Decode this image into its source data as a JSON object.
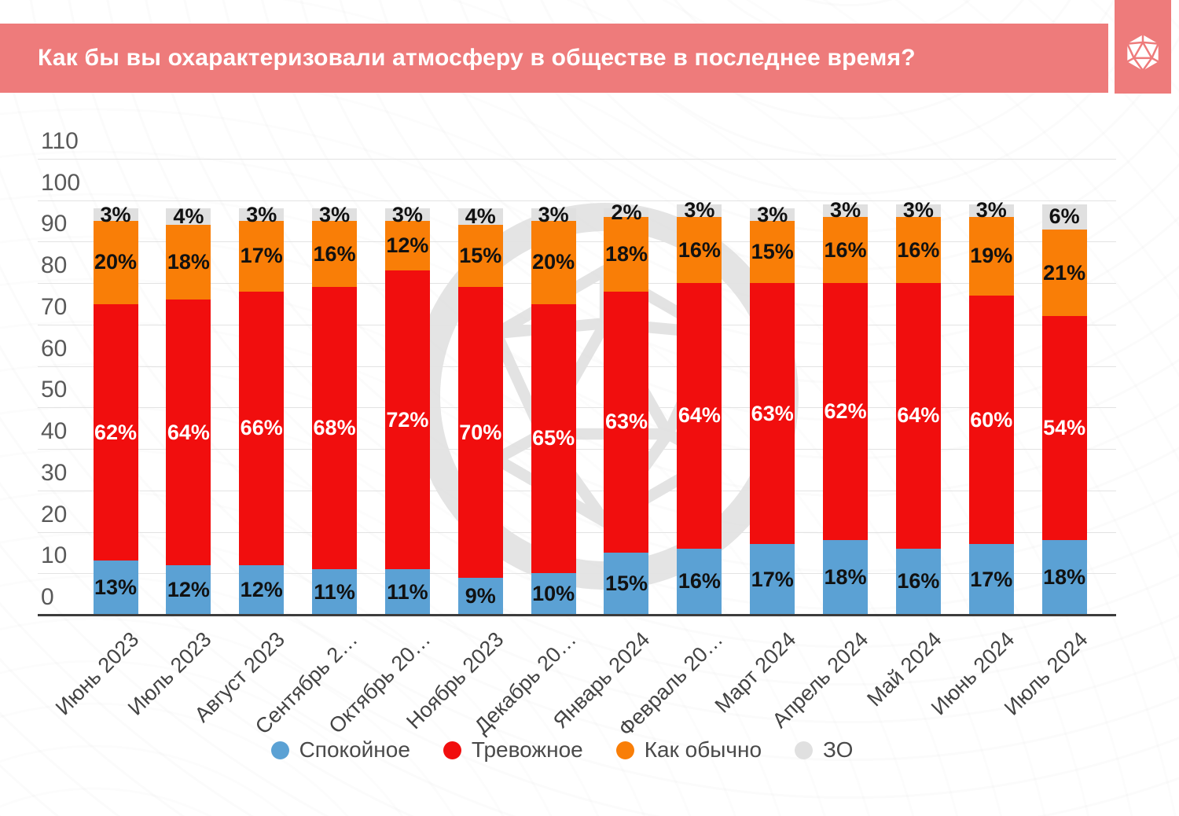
{
  "header": {
    "title": "Как бы вы охарактеризовали атмосферу в обществе в последнее время?",
    "accent_color": "#ee7b7b",
    "logo_icon": "d20-icon"
  },
  "chart_data": {
    "type": "bar",
    "stacked": true,
    "title": "Как бы вы охарактеризовали атмосферу в обществе в последнее время?",
    "categories": [
      "Июнь 2023",
      "Июль 2023",
      "Август 2023",
      "Сентябрь 2…",
      "Октябрь 20…",
      "Ноябрь 2023",
      "Декабрь 20…",
      "Январь 2024",
      "Февраль 20…",
      "Март 2024",
      "Апрель 2024",
      "Май 2024",
      "Июнь 2024",
      "Июль 2024"
    ],
    "series": [
      {
        "name": "Спокойное",
        "color": "#5ba1d4",
        "label_color": "#111111",
        "values": [
          13,
          12,
          12,
          11,
          11,
          9,
          10,
          15,
          16,
          17,
          18,
          16,
          17,
          18
        ]
      },
      {
        "name": "Тревожное",
        "color": "#f10e0e",
        "label_color": "#ffffff",
        "values": [
          62,
          64,
          66,
          68,
          72,
          70,
          65,
          63,
          64,
          63,
          62,
          64,
          60,
          54
        ]
      },
      {
        "name": "Как обычно",
        "color": "#f97e07",
        "label_color": "#111111",
        "values": [
          20,
          18,
          17,
          16,
          12,
          15,
          20,
          18,
          16,
          15,
          16,
          16,
          19,
          21
        ]
      },
      {
        "name": "ЗО",
        "color": "#e0e0e0",
        "label_color": "#111111",
        "values": [
          3,
          4,
          3,
          3,
          3,
          4,
          3,
          2,
          3,
          3,
          3,
          3,
          3,
          6
        ]
      }
    ],
    "value_suffix": "%",
    "ylim": [
      0,
      110
    ],
    "yticks": [
      0,
      10,
      20,
      30,
      40,
      50,
      60,
      70,
      80,
      90,
      100,
      110
    ],
    "grid": true,
    "legend_position": "bottom",
    "grid_color": "#e3e3e3",
    "axis_color": "#3c3c3c"
  }
}
